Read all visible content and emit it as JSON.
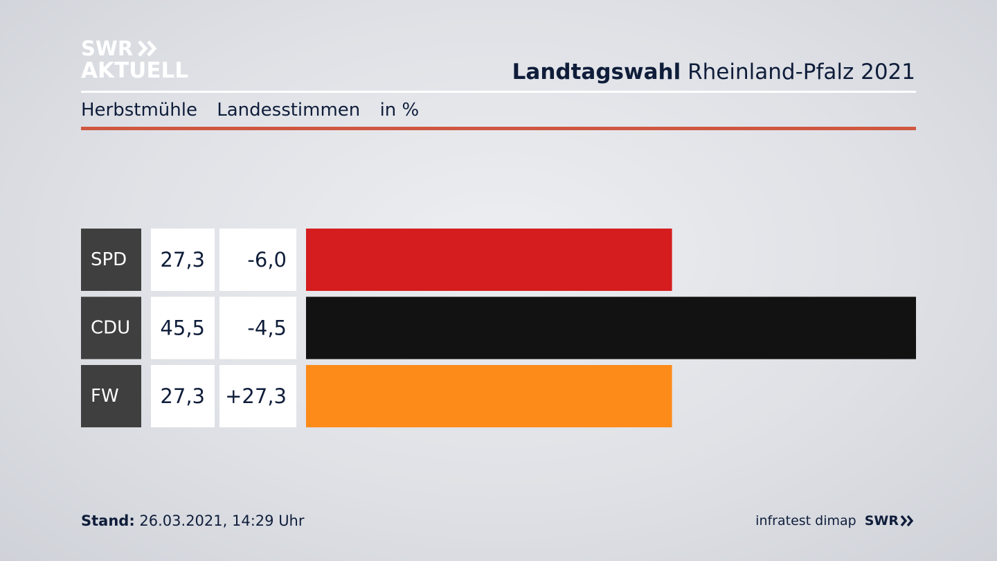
{
  "brand": {
    "logo_line1": "SWR",
    "logo_line2": "AKTUELL"
  },
  "header": {
    "title_bold": "Landtagswahl",
    "title_rest": "Rheinland-Pfalz 2021"
  },
  "subheader": {
    "place": "Herbstmühle",
    "metric": "Landesstimmen",
    "unit": "in %"
  },
  "footer": {
    "stand_label": "Stand:",
    "stand_value": "26.03.2021, 14:29 Uhr",
    "source": "infratest dimap",
    "broadcaster": "SWR"
  },
  "chart_data": {
    "type": "bar",
    "orientation": "horizontal",
    "title": "Landtagswahl Rheinland-Pfalz 2021",
    "subtitle": "Herbstmühle Landesstimmen in %",
    "categories": [
      "SPD",
      "CDU",
      "FW"
    ],
    "values": [
      27.3,
      45.5,
      27.3
    ],
    "value_labels": [
      "27,3",
      "45,5",
      "27,3"
    ],
    "change_labels": [
      "-6,0",
      "-4,5",
      "+27,3"
    ],
    "changes": [
      -6.0,
      -4.5,
      27.3
    ],
    "colors": [
      "#d51d1f",
      "#121212",
      "#fd8b1a"
    ],
    "xlim": [
      0,
      45.5
    ],
    "grid": false
  }
}
